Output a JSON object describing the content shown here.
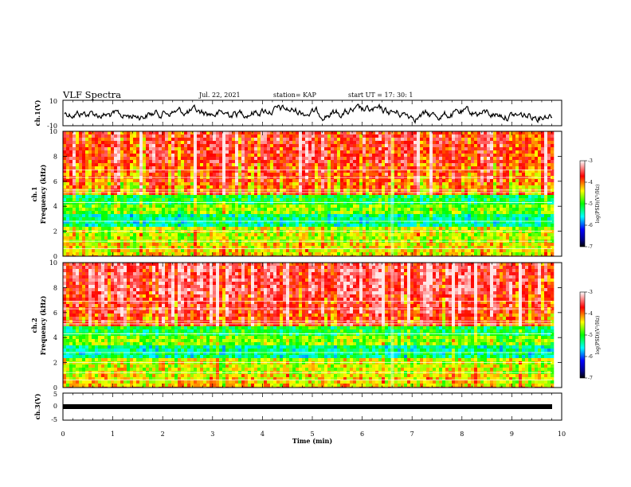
{
  "header": {
    "title": "VLF Spectra",
    "date": "Jul. 22, 2021",
    "station": "station= KAP",
    "start": "start  UT  =   17: 30: 1"
  },
  "chart_data": [
    {
      "type": "line",
      "name": "ch1-waveform",
      "ylabel": "ch.1(V)",
      "ylim": [
        -10,
        10
      ],
      "yticks": [
        "10",
        "-10"
      ],
      "xlim": [
        0,
        10
      ]
    },
    {
      "type": "heatmap",
      "name": "ch1-spectrogram",
      "ylabel": "ch.1\nFrequency (kHz)",
      "ylim": [
        0,
        10
      ],
      "yticks": [
        "0",
        "2",
        "4",
        "6",
        "8",
        "10"
      ],
      "xlim": [
        0,
        10
      ],
      "colorbar": {
        "label": "log(PSD)(V²/Hz)",
        "range": [
          -7,
          -3
        ],
        "ticks": [
          "-3",
          "-4",
          "-5",
          "-6",
          "-7"
        ]
      }
    },
    {
      "type": "heatmap",
      "name": "ch2-spectrogram",
      "ylabel": "ch.2\nFrequency (kHz)",
      "ylim": [
        0,
        10
      ],
      "yticks": [
        "0",
        "2",
        "4",
        "6",
        "8",
        "10"
      ],
      "xlim": [
        0,
        10
      ],
      "colorbar": {
        "label": "log(PSD)(V²/Hz)",
        "range": [
          -7,
          -3
        ],
        "ticks": [
          "-3",
          "-4",
          "-5",
          "-6",
          "-7"
        ]
      }
    },
    {
      "type": "line",
      "name": "ch3-waveform",
      "ylabel": "ch.3(V)",
      "ylim": [
        -5,
        5
      ],
      "yticks": [
        "5",
        "0",
        "-5"
      ],
      "xlim": [
        0,
        10
      ]
    }
  ],
  "xaxis": {
    "label": "Time (min)",
    "ticks": [
      "0",
      "1",
      "2",
      "3",
      "4",
      "5",
      "6",
      "7",
      "8",
      "9",
      "10"
    ]
  },
  "colors": {
    "waveform": "#000000",
    "colormap": [
      "#000080",
      "#0000ff",
      "#00ffff",
      "#00ff00",
      "#ffff00",
      "#ff0000",
      "#ffffff"
    ]
  }
}
